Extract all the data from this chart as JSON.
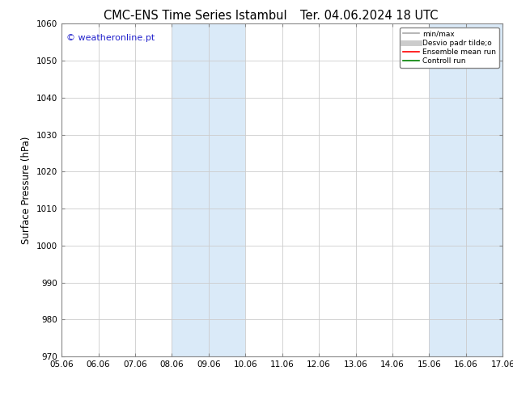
{
  "title_left": "CMC-ENS Time Series Istambul",
  "title_right": "Ter. 04.06.2024 18 UTC",
  "ylabel": "Surface Pressure (hPa)",
  "ylim": [
    970,
    1060
  ],
  "yticks": [
    970,
    980,
    990,
    1000,
    1010,
    1020,
    1030,
    1040,
    1050,
    1060
  ],
  "xtick_labels": [
    "05.06",
    "06.06",
    "07.06",
    "08.06",
    "09.06",
    "10.06",
    "11.06",
    "12.06",
    "13.06",
    "14.06",
    "15.06",
    "16.06",
    "17.06"
  ],
  "x_min": 0,
  "x_max": 12,
  "shaded_regions": [
    {
      "x_start": 3,
      "x_end": 5,
      "color": "#daeaf8"
    },
    {
      "x_start": 10,
      "x_end": 12,
      "color": "#daeaf8"
    }
  ],
  "watermark_text": "© weatheronline.pt",
  "watermark_color": "#2222cc",
  "legend_items": [
    {
      "label": "min/max",
      "color": "#aaaaaa",
      "lw": 1.2,
      "ls": "-"
    },
    {
      "label": "Desvio padr tilde;o",
      "color": "#cccccc",
      "lw": 5,
      "ls": "-"
    },
    {
      "label": "Ensemble mean run",
      "color": "#ff0000",
      "lw": 1.2,
      "ls": "-"
    },
    {
      "label": "Controll run",
      "color": "#008000",
      "lw": 1.2,
      "ls": "-"
    }
  ],
  "bg_color": "#ffffff",
  "grid_color": "#cccccc",
  "spine_color": "#888888",
  "title_fontsize": 10.5,
  "tick_fontsize": 7.5,
  "ylabel_fontsize": 8.5,
  "watermark_fontsize": 8
}
